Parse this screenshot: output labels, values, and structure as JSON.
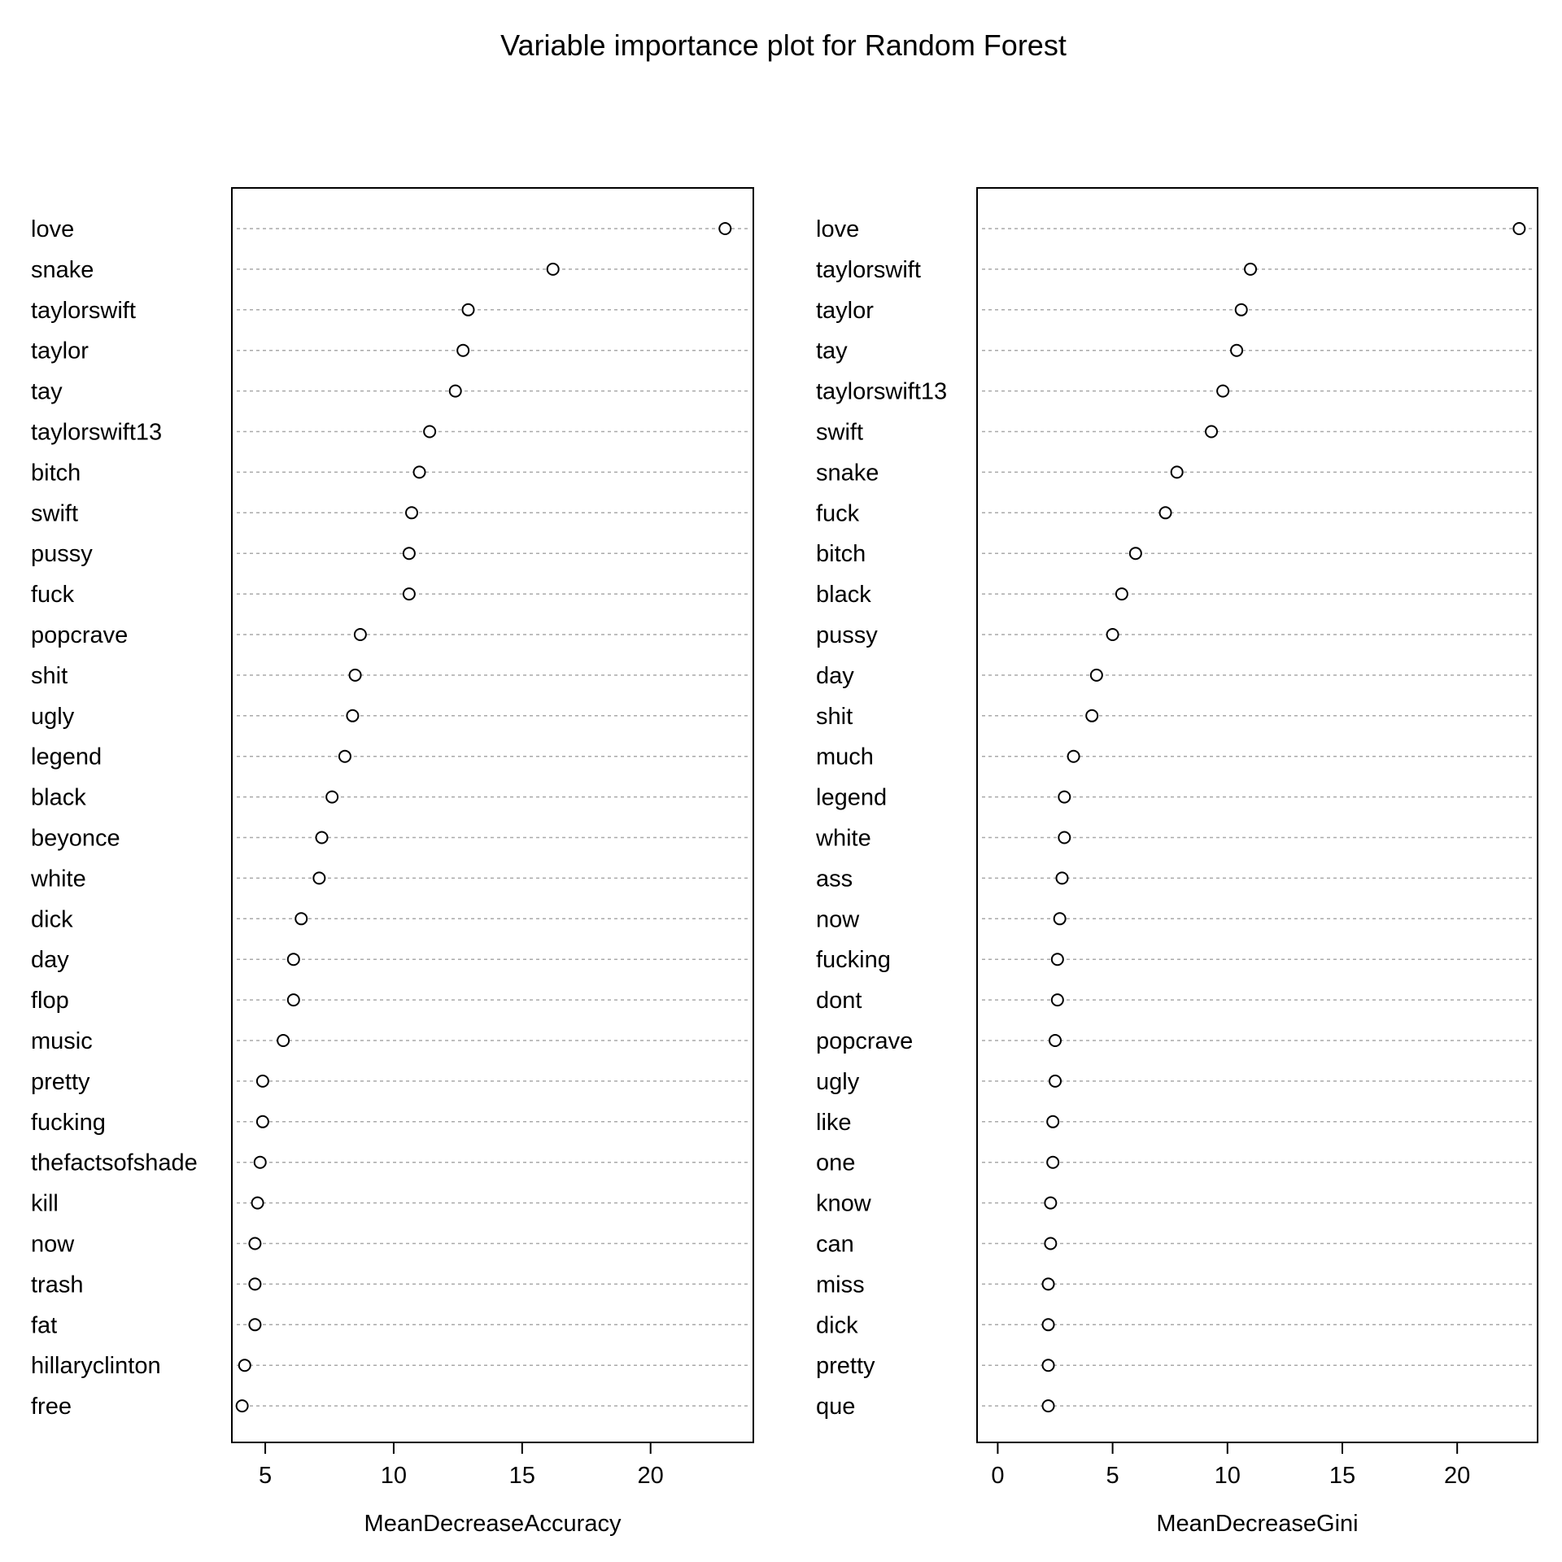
{
  "title": "Variable importance plot for Random Forest",
  "chart_data": [
    {
      "type": "scatter",
      "xlabel": "MeanDecreaseAccuracy",
      "xlim": [
        3.7,
        24.0
      ],
      "xticks": [
        5,
        10,
        15,
        20
      ],
      "grid": "dotted horizontal lines per variable",
      "categories": [
        "love",
        "snake",
        "taylorswift",
        "taylor",
        "tay",
        "taylorswift13",
        "bitch",
        "swift",
        "pussy",
        "fuck",
        "popcrave",
        "shit",
        "ugly",
        "legend",
        "black",
        "beyonce",
        "white",
        "dick",
        "day",
        "flop",
        "music",
        "pretty",
        "fucking",
        "thefactsofshade",
        "kill",
        "now",
        "trash",
        "fat",
        "hillaryclinton",
        "free"
      ],
      "values": [
        22.9,
        16.2,
        12.9,
        12.7,
        12.4,
        11.4,
        11.0,
        10.7,
        10.6,
        10.6,
        8.7,
        8.5,
        8.4,
        8.1,
        7.6,
        7.2,
        7.1,
        6.4,
        6.1,
        6.1,
        5.7,
        4.9,
        4.9,
        4.8,
        4.7,
        4.6,
        4.6,
        4.6,
        4.2,
        4.1
      ]
    },
    {
      "type": "scatter",
      "xlabel": "MeanDecreaseGini",
      "xlim": [
        -0.9,
        23.5
      ],
      "xticks": [
        0,
        5,
        10,
        15,
        20
      ],
      "grid": "dotted horizontal lines per variable",
      "categories": [
        "love",
        "taylorswift",
        "taylor",
        "tay",
        "taylorswift13",
        "swift",
        "snake",
        "fuck",
        "bitch",
        "black",
        "pussy",
        "day",
        "shit",
        "much",
        "legend",
        "white",
        "ass",
        "now",
        "fucking",
        "dont",
        "popcrave",
        "ugly",
        "like",
        "one",
        "know",
        "can",
        "miss",
        "dick",
        "pretty",
        "que"
      ],
      "values": [
        22.7,
        11.0,
        10.6,
        10.4,
        9.8,
        9.3,
        7.8,
        7.3,
        6.0,
        5.4,
        5.0,
        4.3,
        4.1,
        3.3,
        2.9,
        2.9,
        2.8,
        2.7,
        2.6,
        2.6,
        2.5,
        2.5,
        2.4,
        2.4,
        2.3,
        2.3,
        2.2,
        2.2,
        2.2,
        2.2
      ]
    }
  ]
}
